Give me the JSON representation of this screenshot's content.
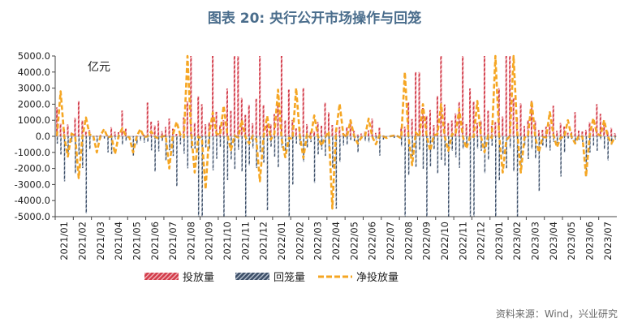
{
  "page": {
    "title": "图表 20: 央行公开市场操作与回笼",
    "source": "资料来源：Wind，兴业研究"
  },
  "colors": {
    "put": "#d23c4a",
    "put_stripe": "#f2b5bb",
    "withdraw": "#3d4f68",
    "withdraw_stripe": "#b8c2d0",
    "net": "#f5a623",
    "axis": "#444444"
  },
  "chart_data": {
    "type": "bar",
    "unit_label": "亿元",
    "ylim": [
      -5000,
      5000
    ],
    "y_ticks": [
      "5000.0",
      "4000.0",
      "3000.0",
      "2000.0",
      "1000.0",
      "0.0",
      "-1000.0",
      "-2000.0",
      "-3000.0",
      "-4000.0",
      "-5000.0"
    ],
    "x_ticks": [
      "2021/01",
      "2021/02",
      "2021/03",
      "2021/04",
      "2021/05",
      "2021/06",
      "2021/07",
      "2021/08",
      "2021/09",
      "2021/10",
      "2021/11",
      "2021/12",
      "2022/01",
      "2022/02",
      "2022/03",
      "2022/04",
      "2022/05",
      "2022/06",
      "2022/07",
      "2022/08",
      "2022/09",
      "2022/10",
      "2022/11",
      "2022/12",
      "2023/01",
      "2023/02",
      "2023/03",
      "2023/04",
      "2023/05",
      "2023/06",
      "2023/07"
    ],
    "legend": [
      {
        "key": "put",
        "label": "投放量"
      },
      {
        "key": "withdraw",
        "label": "回笼量"
      },
      {
        "key": "net",
        "label": "净投放量"
      }
    ],
    "month_profile": [
      {
        "month": "2021/01",
        "put_peak": 1800,
        "withdraw_peak": -2800,
        "net_peak": 2800
      },
      {
        "month": "2021/02",
        "put_peak": 2200,
        "withdraw_peak": -4800,
        "net_peak": -2600
      },
      {
        "month": "2021/03",
        "put_peak": 100,
        "withdraw_peak": -1000,
        "net_peak": -1000
      },
      {
        "month": "2021/04",
        "put_peak": 1600,
        "withdraw_peak": -1100,
        "net_peak": -1100
      },
      {
        "month": "2021/05",
        "put_peak": 100,
        "withdraw_peak": -1200,
        "net_peak": -1000
      },
      {
        "month": "2021/06",
        "put_peak": 2100,
        "withdraw_peak": -2200,
        "net_peak": 300
      },
      {
        "month": "2021/07",
        "put_peak": 1100,
        "withdraw_peak": -3100,
        "net_peak": -2000
      },
      {
        "month": "2021/08",
        "put_peak": 5000,
        "withdraw_peak": -5000,
        "net_peak": 5000
      },
      {
        "month": "2021/09",
        "put_peak": 5000,
        "withdraw_peak": -5000,
        "net_peak": -3300
      },
      {
        "month": "2021/10",
        "put_peak": 5000,
        "withdraw_peak": -5000,
        "net_peak": 1900
      },
      {
        "month": "2021/11",
        "put_peak": 5000,
        "withdraw_peak": -5000,
        "net_peak": 1000
      },
      {
        "month": "2021/12",
        "put_peak": 5000,
        "withdraw_peak": -4600,
        "net_peak": -2800
      },
      {
        "month": "2022/01",
        "put_peak": 5000,
        "withdraw_peak": -5000,
        "net_peak": 2900
      },
      {
        "month": "2022/02",
        "put_peak": 3000,
        "withdraw_peak": -3000,
        "net_peak": 3000
      },
      {
        "month": "2022/03",
        "put_peak": 2100,
        "withdraw_peak": -2900,
        "net_peak": 1300
      },
      {
        "month": "2022/04",
        "put_peak": 1500,
        "withdraw_peak": -4500,
        "net_peak": -4500
      },
      {
        "month": "2022/05",
        "put_peak": 1000,
        "withdraw_peak": -1000,
        "net_peak": 1000
      },
      {
        "month": "2022/06",
        "put_peak": 1100,
        "withdraw_peak": -1200,
        "net_peak": 1100
      },
      {
        "month": "2022/07",
        "put_peak": 100,
        "withdraw_peak": -200,
        "net_peak": -100
      },
      {
        "month": "2022/08",
        "put_peak": 4000,
        "withdraw_peak": -5000,
        "net_peak": 4000
      },
      {
        "month": "2022/09",
        "put_peak": 4000,
        "withdraw_peak": -5000,
        "net_peak": 2000
      },
      {
        "month": "2022/10",
        "put_peak": 5000,
        "withdraw_peak": -5000,
        "net_peak": 2000
      },
      {
        "month": "2022/11",
        "put_peak": 5000,
        "withdraw_peak": -5000,
        "net_peak": 1700
      },
      {
        "month": "2022/12",
        "put_peak": 5000,
        "withdraw_peak": -5000,
        "net_peak": 2200
      },
      {
        "month": "2023/01",
        "put_peak": 5000,
        "withdraw_peak": -5000,
        "net_peak": 5000
      },
      {
        "month": "2023/02",
        "put_peak": 5000,
        "withdraw_peak": -5000,
        "net_peak": 5000
      },
      {
        "month": "2023/03",
        "put_peak": 2200,
        "withdraw_peak": -3400,
        "net_peak": 2200
      },
      {
        "month": "2023/04",
        "put_peak": 1900,
        "withdraw_peak": -2500,
        "net_peak": 1500
      },
      {
        "month": "2023/05",
        "put_peak": 1500,
        "withdraw_peak": -1000,
        "net_peak": 1000
      },
      {
        "month": "2023/06",
        "put_peak": 2000,
        "withdraw_peak": -2500,
        "net_peak": -2500
      },
      {
        "month": "2023/07",
        "put_peak": 1400,
        "withdraw_peak": -1500,
        "net_peak": 1000
      }
    ]
  }
}
